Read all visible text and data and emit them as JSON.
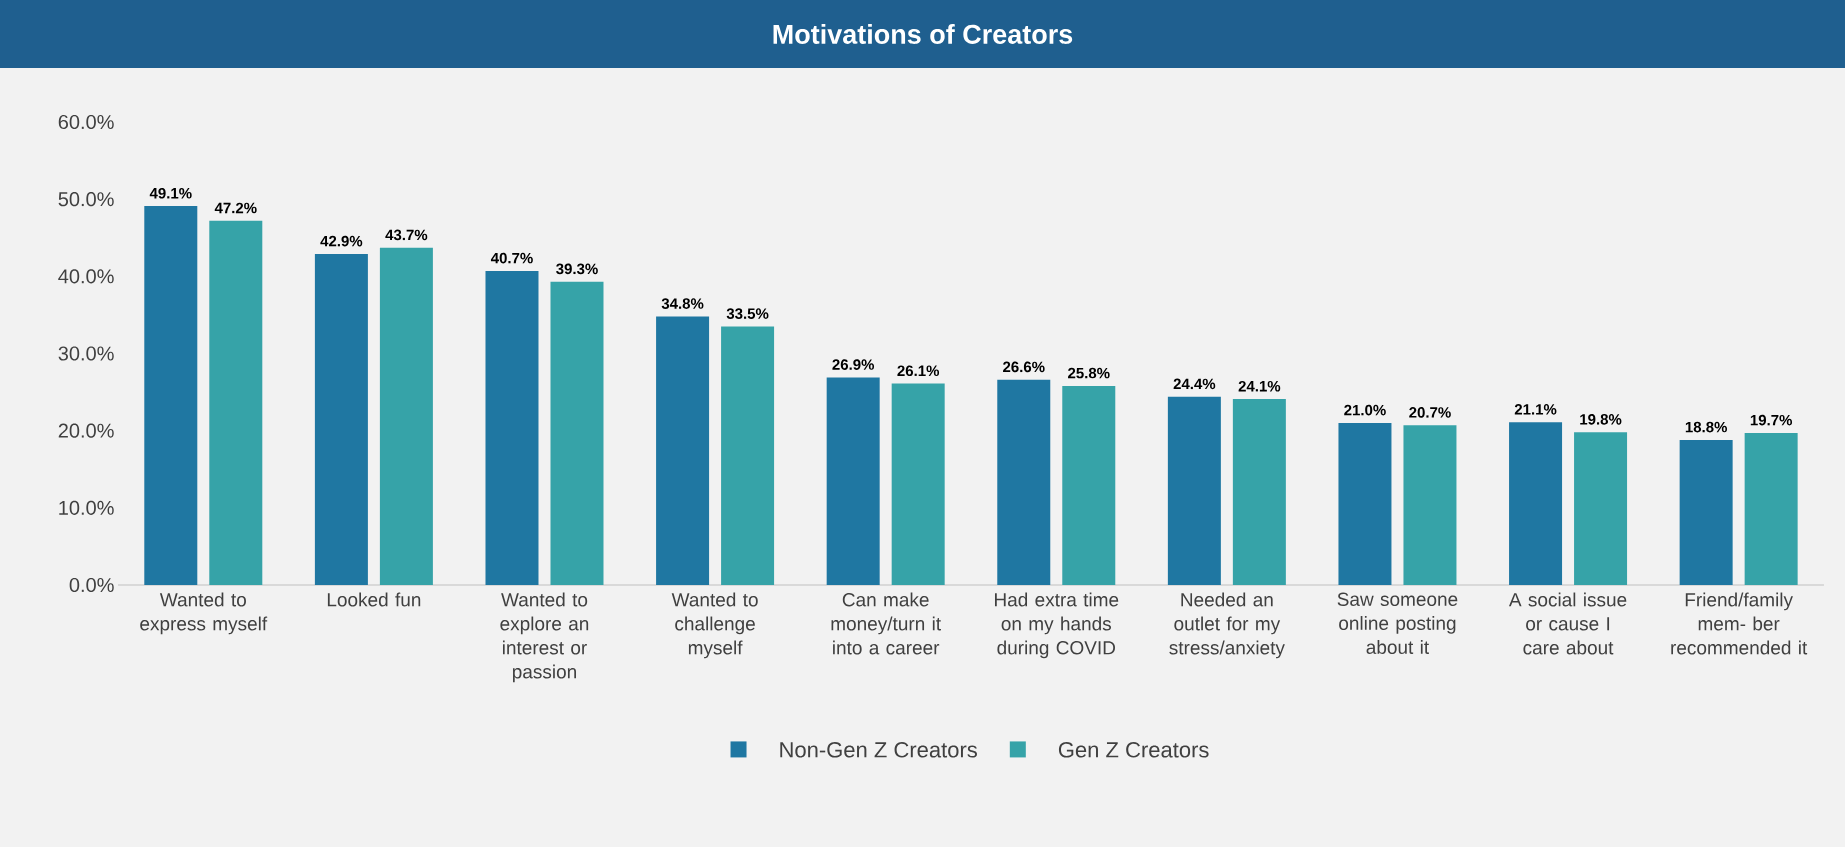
{
  "chart_data": {
    "type": "bar",
    "title": "Motivations of Creators",
    "categories": [
      "Wanted to express myself",
      "Looked fun",
      "Wanted to explore an interest or passion",
      "Wanted to challenge myself",
      "Can make money/turn it into a career",
      "Had extra time on my hands during COVID",
      "Needed an outlet for my stress/anxiety",
      "Saw someone online posting about it",
      "A social issue or cause I care about",
      "Friend/family mem- ber recommended it"
    ],
    "series": [
      {
        "name": "Non-Gen Z Creators",
        "color": "#1f77a2",
        "values": [
          49.1,
          42.9,
          40.7,
          34.8,
          26.9,
          26.6,
          24.4,
          21.0,
          21.1,
          18.8
        ],
        "value_labels": [
          "49.1%",
          "42.9%",
          "40.7%",
          "34.8%",
          "26.9%",
          "26.6%",
          "24.4%",
          "21.0%",
          "21.1%",
          "18.8%"
        ]
      },
      {
        "name": "Gen Z Creators",
        "color": "#36a3a8",
        "values": [
          47.2,
          43.7,
          39.3,
          33.5,
          26.1,
          25.8,
          24.1,
          20.7,
          19.8,
          19.7
        ],
        "value_labels": [
          "47.2%",
          "43.7%",
          "39.3%",
          "33.5%",
          "26.1%",
          "25.8%",
          "24.1%",
          "20.7%",
          "19.8%",
          "19.7%"
        ]
      }
    ],
    "ylim": [
      0,
      60
    ],
    "yticks": [
      {
        "value": 0,
        "label": "0.0%"
      },
      {
        "value": 10,
        "label": "10.0%"
      },
      {
        "value": 20,
        "label": "20.0%"
      },
      {
        "value": 30,
        "label": "30.0%"
      },
      {
        "value": 40,
        "label": "40.0%"
      },
      {
        "value": 50,
        "label": "50.0%"
      },
      {
        "value": 60,
        "label": "60.0%"
      }
    ],
    "grid": false,
    "legend": "bottom"
  }
}
